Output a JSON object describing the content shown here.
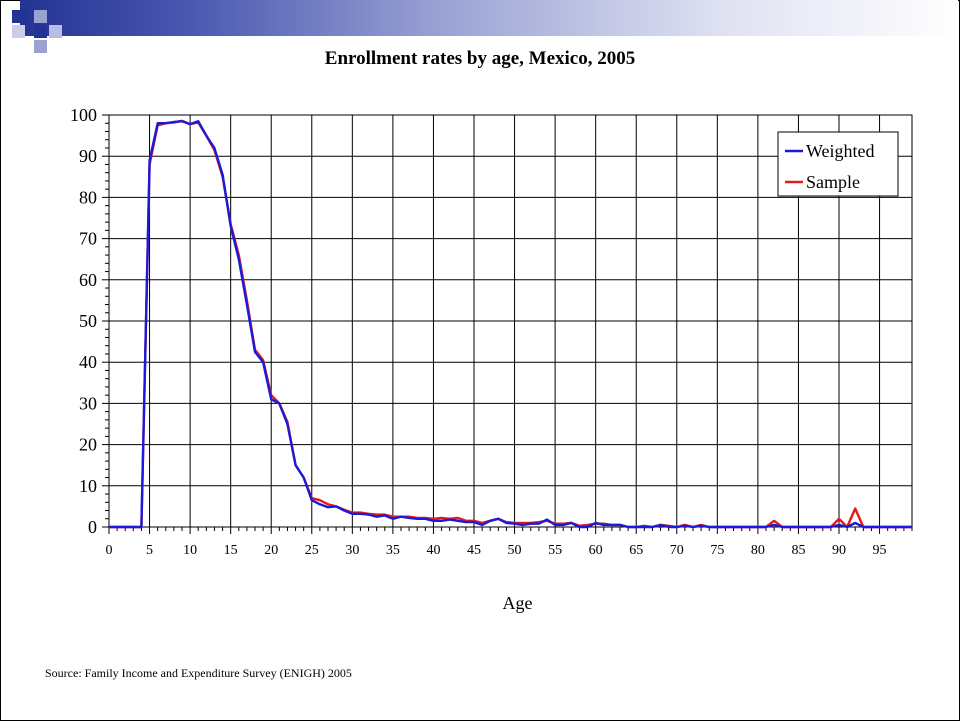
{
  "slide": {
    "source": "Source: Family Income and Expenditure Survey (ENIGH) 2005"
  },
  "colors": {
    "weighted": "#1a1adc",
    "sample": "#e31a1a",
    "accent": "#233393"
  },
  "chart_data": {
    "type": "line",
    "title": "Enrollment rates by age, Mexico, 2005",
    "xlabel": "Age",
    "ylabel": "",
    "xlim": [
      0,
      99
    ],
    "ylim": [
      0,
      100
    ],
    "x_ticks": [
      0,
      5,
      10,
      15,
      20,
      25,
      30,
      35,
      40,
      45,
      50,
      55,
      60,
      65,
      70,
      75,
      80,
      85,
      90,
      95
    ],
    "y_ticks": [
      0,
      10,
      20,
      30,
      40,
      50,
      60,
      70,
      80,
      90,
      100
    ],
    "grid": true,
    "legend_position": "top-right",
    "x": [
      0,
      1,
      2,
      3,
      4,
      5,
      6,
      7,
      8,
      9,
      10,
      11,
      12,
      13,
      14,
      15,
      16,
      17,
      18,
      19,
      20,
      21,
      22,
      23,
      24,
      25,
      26,
      27,
      28,
      29,
      30,
      31,
      32,
      33,
      34,
      35,
      36,
      37,
      38,
      39,
      40,
      41,
      42,
      43,
      44,
      45,
      46,
      47,
      48,
      49,
      50,
      51,
      52,
      53,
      54,
      55,
      56,
      57,
      58,
      59,
      60,
      61,
      62,
      63,
      64,
      65,
      66,
      67,
      68,
      69,
      70,
      71,
      72,
      73,
      74,
      75,
      76,
      77,
      78,
      79,
      80,
      81,
      82,
      83,
      84,
      85,
      86,
      87,
      88,
      89,
      90,
      91,
      92,
      93,
      94,
      95,
      96,
      97,
      98,
      99
    ],
    "series": [
      {
        "name": "Weighted",
        "values": [
          0,
          0,
          0,
          0,
          0,
          89,
          98,
          98,
          98.3,
          98.5,
          97.8,
          98.5,
          95,
          92,
          85.5,
          73,
          65,
          54,
          42.5,
          40,
          31,
          30,
          25,
          15,
          12,
          6.5,
          5.5,
          4.8,
          5,
          4,
          3.2,
          3.2,
          3,
          2.5,
          2.8,
          2,
          2.5,
          2.2,
          2,
          2,
          1.5,
          1.5,
          1.8,
          1.5,
          1.2,
          1.2,
          0.5,
          1.5,
          2,
          1,
          0.8,
          0.5,
          0.8,
          0.8,
          1.8,
          0.5,
          0.5,
          1,
          0,
          0,
          1,
          0.5,
          0.5,
          0.5,
          0,
          0,
          0,
          0,
          0.5,
          0,
          0,
          0.3,
          0,
          0.3,
          0,
          0,
          0,
          0,
          0,
          0,
          0,
          0,
          0.5,
          0,
          0,
          0,
          0,
          0,
          0,
          0,
          0.5,
          0,
          1,
          0,
          0,
          0,
          0,
          0,
          0,
          0
        ]
      },
      {
        "name": "Sample",
        "values": [
          0,
          0,
          0,
          0,
          0,
          88,
          97.5,
          98,
          98.2,
          98.6,
          97.8,
          98.2,
          95,
          91.5,
          85,
          73.5,
          66,
          55,
          43,
          40.5,
          32,
          30,
          25.5,
          15,
          12,
          7,
          6.5,
          5.5,
          5,
          4.2,
          3.5,
          3.5,
          3.2,
          3,
          3,
          2.5,
          2.5,
          2.5,
          2.2,
          2.2,
          2,
          2.2,
          2,
          2.2,
          1.5,
          1.5,
          1,
          1.5,
          2,
          1.2,
          1,
          1,
          1,
          1.2,
          1.5,
          0.8,
          0.8,
          1,
          0.3,
          0.5,
          0.8,
          0.8,
          0.5,
          0.5,
          0,
          0,
          0.3,
          0,
          0.5,
          0.3,
          0,
          0.5,
          0,
          0.5,
          0,
          0,
          0,
          0,
          0,
          0,
          0,
          0,
          1.5,
          0,
          0,
          0,
          0,
          0,
          0,
          0,
          2,
          0,
          4.5,
          0,
          0,
          0,
          0,
          0,
          0,
          0
        ]
      }
    ]
  }
}
